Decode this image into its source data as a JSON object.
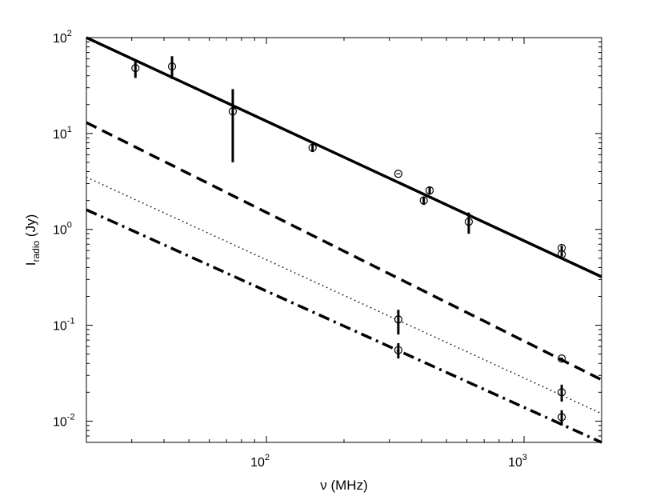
{
  "chart_data": {
    "type": "scatter",
    "title": "",
    "xlabel": "ν (MHz)",
    "ylabel": {
      "base": "I",
      "subscript": "radio",
      "rest": " (Jy)"
    },
    "xscale": "log",
    "yscale": "log",
    "xlim": [
      20,
      2000
    ],
    "ylim": [
      0.006,
      100
    ],
    "grid": false,
    "x_ticks": [
      {
        "value": 100,
        "base": "10",
        "exp": "2"
      },
      {
        "value": 1000,
        "base": "10",
        "exp": "3"
      }
    ],
    "y_ticks": [
      {
        "value": 0.01,
        "base": "10",
        "exp": "-2"
      },
      {
        "value": 0.1,
        "base": "10",
        "exp": "-1"
      },
      {
        "value": 1,
        "base": "10",
        "exp": "0"
      },
      {
        "value": 10,
        "base": "10",
        "exp": "1"
      },
      {
        "value": 100,
        "base": "10",
        "exp": "2"
      }
    ],
    "lines": [
      {
        "style": "solid",
        "x": [
          20,
          2000
        ],
        "y": [
          100,
          0.32
        ]
      },
      {
        "style": "dashed",
        "x": [
          20,
          2000
        ],
        "y": [
          13,
          0.027
        ]
      },
      {
        "style": "dotted",
        "x": [
          20,
          2000
        ],
        "y": [
          3.5,
          0.012
        ]
      },
      {
        "style": "dashdot",
        "x": [
          20,
          2000
        ],
        "y": [
          1.6,
          0.006
        ]
      }
    ],
    "series": [
      {
        "points": [
          {
            "x": 31,
            "y": 48,
            "lo": 38,
            "hi": 58
          },
          {
            "x": 43,
            "y": 50,
            "lo": 37,
            "hi": 64
          },
          {
            "x": 74,
            "y": 17,
            "lo": 5,
            "hi": 29
          },
          {
            "x": 151,
            "y": 7.1,
            "lo": 6.4,
            "hi": 7.8
          },
          {
            "x": 325,
            "y": 3.8,
            "lo": 3.8,
            "hi": 3.8
          },
          {
            "x": 408,
            "y": 2.0,
            "lo": 1.8,
            "hi": 2.2
          },
          {
            "x": 430,
            "y": 2.55,
            "lo": 2.3,
            "hi": 2.8
          },
          {
            "x": 610,
            "y": 1.2,
            "lo": 0.9,
            "hi": 1.5
          },
          {
            "x": 1400,
            "y": 0.64,
            "lo": 0.6,
            "hi": 0.68
          },
          {
            "x": 1400,
            "y": 0.55,
            "lo": 0.52,
            "hi": 0.58
          }
        ]
      },
      {
        "points": [
          {
            "x": 325,
            "y": 0.115,
            "lo": 0.08,
            "hi": 0.145
          },
          {
            "x": 1400,
            "y": 0.045,
            "lo": 0.044,
            "hi": 0.046
          }
        ]
      },
      {
        "points": [
          {
            "x": 1400,
            "y": 0.02,
            "lo": 0.016,
            "hi": 0.024
          }
        ]
      },
      {
        "points": [
          {
            "x": 325,
            "y": 0.055,
            "lo": 0.045,
            "hi": 0.065
          },
          {
            "x": 1400,
            "y": 0.011,
            "lo": 0.009,
            "hi": 0.013
          }
        ]
      }
    ]
  }
}
